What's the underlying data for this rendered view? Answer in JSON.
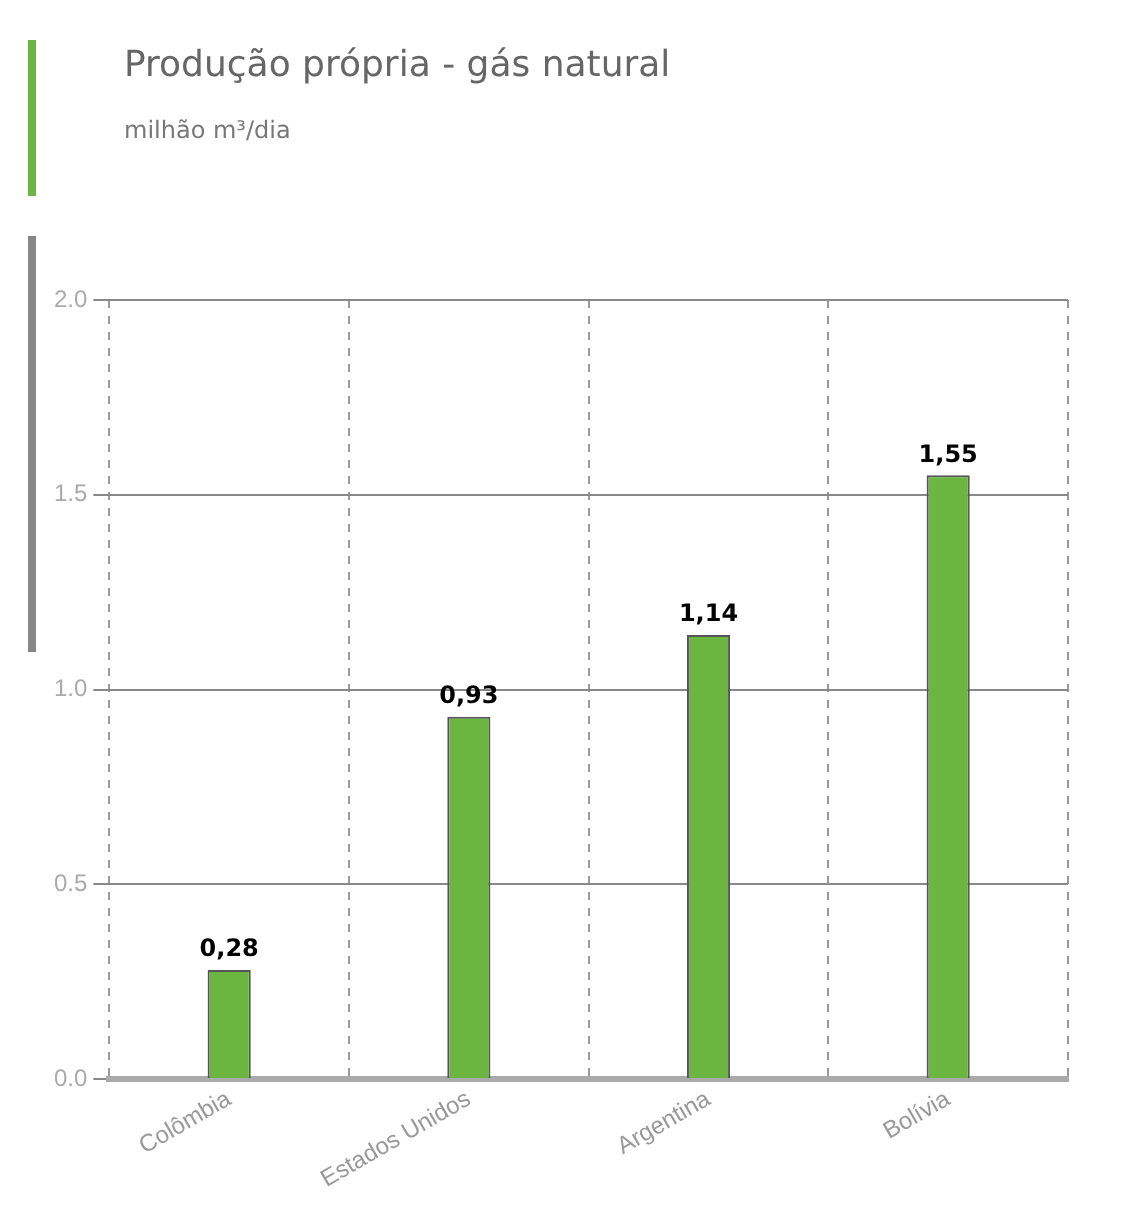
{
  "chart_data": {
    "type": "bar",
    "title": "Produção própria - gás natural",
    "subtitle": "milhão m³/dia",
    "categories": [
      "Colômbia",
      "Estados Unidos",
      "Argentina",
      "Bolívia"
    ],
    "values": [
      0.28,
      0.93,
      1.14,
      1.55
    ],
    "color": "#6ab640",
    "value_labels": [
      "0,28",
      "0,93",
      "1,14",
      "1,55"
    ],
    "ylim": [
      0,
      2
    ],
    "yticks": [
      {
        "value": 0,
        "label": "0.0"
      },
      {
        "value": 0.5,
        "label": "0.5"
      },
      {
        "value": 1,
        "label": "1.0"
      },
      {
        "value": 1.5,
        "label": "1.5"
      },
      {
        "value": 2,
        "label": "2.0"
      }
    ],
    "grid": true
  }
}
